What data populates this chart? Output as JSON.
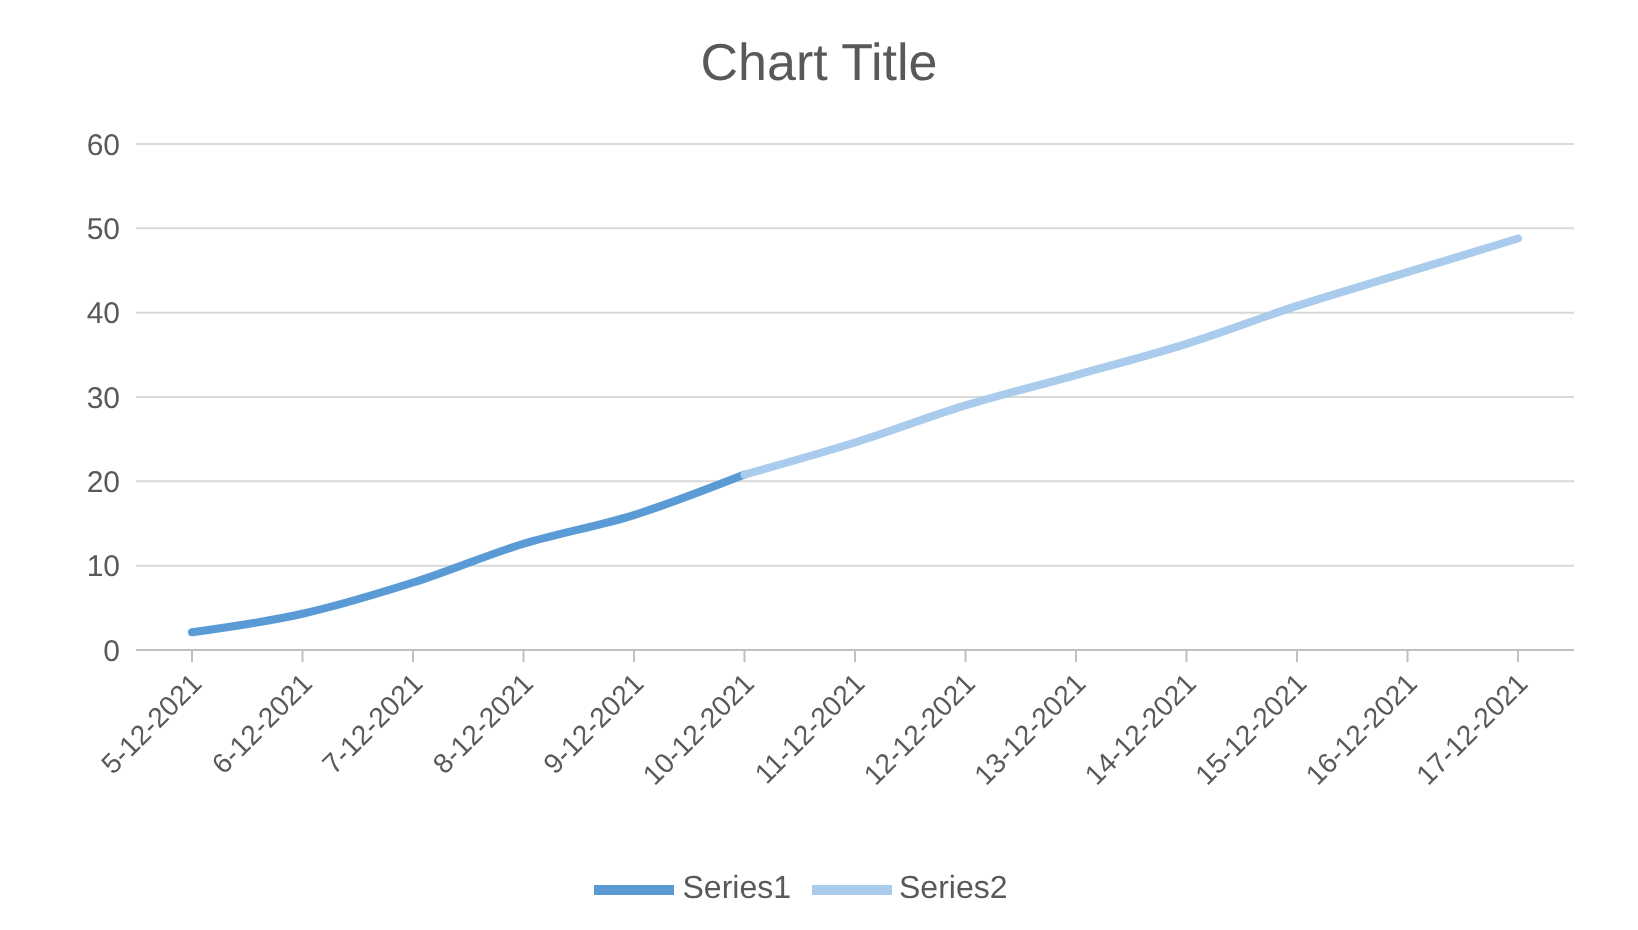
{
  "chart_data": {
    "type": "line",
    "title": "Chart Title",
    "categories": [
      "5-12-2021",
      "6-12-2021",
      "7-12-2021",
      "8-12-2021",
      "9-12-2021",
      "10-12-2021",
      "11-12-2021",
      "12-12-2021",
      "13-12-2021",
      "14-12-2021",
      "15-12-2021",
      "16-12-2021",
      "17-12-2021"
    ],
    "series": [
      {
        "name": "Series1",
        "color": "#5b9bd5",
        "values": [
          2.1,
          4.3,
          8.0,
          12.6,
          16.0,
          20.8,
          null,
          null,
          null,
          null,
          null,
          null,
          null
        ]
      },
      {
        "name": "Series2",
        "color": "#a9cbec",
        "values": [
          null,
          null,
          null,
          null,
          null,
          20.8,
          24.6,
          29.0,
          32.6,
          36.3,
          40.8,
          44.8,
          48.8
        ]
      }
    ],
    "ylim": [
      0,
      60
    ],
    "yticks": [
      0,
      10,
      20,
      30,
      40,
      50,
      60
    ],
    "grid": "y",
    "legend": "bottom",
    "marker": "none",
    "line_style": "solid"
  }
}
